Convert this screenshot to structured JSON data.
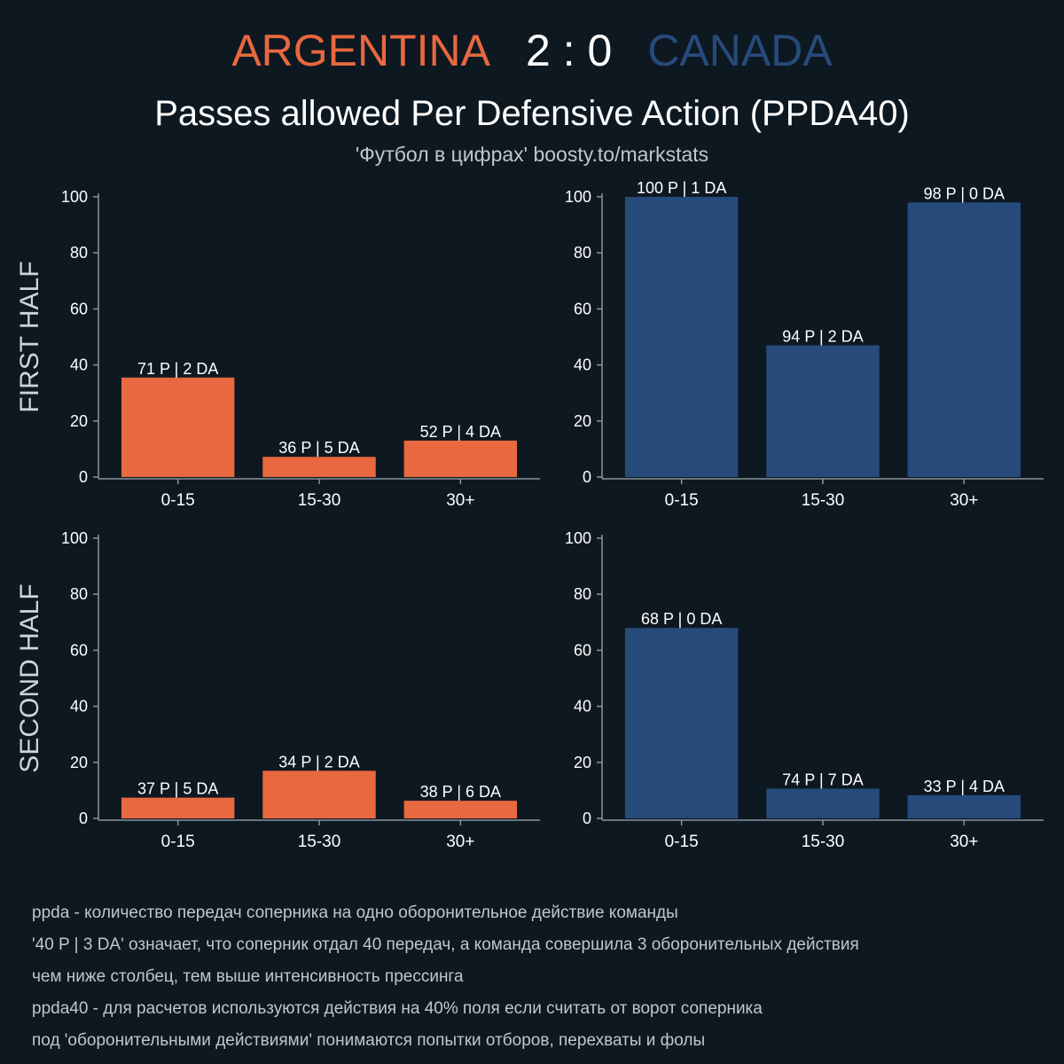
{
  "header": {
    "home_team": "ARGENTINA",
    "score": "2 : 0",
    "away_team": "CANADA",
    "title": "Passes allowed Per Defensive Action (PPDA40)",
    "subtitle": "'Футбол в цифрах' boosty.to/markstats"
  },
  "colors": {
    "background": "#0e1821",
    "home": "#e8683f",
    "away": "#264b7a",
    "axis": "#8a949e",
    "text": "#ffffff",
    "muted": "#c2c6cb"
  },
  "row_labels": [
    "FIRST HALF",
    "SECOND HALF"
  ],
  "chart_data": [
    {
      "type": "bar",
      "team": "ARGENTINA",
      "half": "FIRST HALF",
      "categories": [
        "0-15",
        "15-30",
        "30+"
      ],
      "values": [
        35.5,
        7.2,
        13.0
      ],
      "labels": [
        "71 P | 2 DA",
        "36 P | 5 DA",
        "52 P | 4 DA"
      ],
      "yticks": [
        0,
        20,
        40,
        60,
        80,
        100
      ],
      "ylim": [
        0,
        100
      ],
      "color": "#e8683f"
    },
    {
      "type": "bar",
      "team": "CANADA",
      "half": "FIRST HALF",
      "categories": [
        "0-15",
        "15-30",
        "30+"
      ],
      "values": [
        100,
        47,
        98
      ],
      "labels": [
        "100 P | 1 DA",
        "94 P | 2 DA",
        "98 P | 0 DA"
      ],
      "yticks": [
        0,
        20,
        40,
        60,
        80,
        100
      ],
      "ylim": [
        0,
        100
      ],
      "color": "#264b7a"
    },
    {
      "type": "bar",
      "team": "ARGENTINA",
      "half": "SECOND HALF",
      "categories": [
        "0-15",
        "15-30",
        "30+"
      ],
      "values": [
        7.4,
        17.0,
        6.3
      ],
      "labels": [
        "37 P | 5 DA",
        "34 P | 2 DA",
        "38 P | 6 DA"
      ],
      "yticks": [
        0,
        20,
        40,
        60,
        80,
        100
      ],
      "ylim": [
        0,
        100
      ],
      "color": "#e8683f"
    },
    {
      "type": "bar",
      "team": "CANADA",
      "half": "SECOND HALF",
      "categories": [
        "0-15",
        "15-30",
        "30+"
      ],
      "values": [
        68,
        10.6,
        8.3
      ],
      "labels": [
        "68 P | 0 DA",
        "74 P | 7 DA",
        "33 P | 4 DA"
      ],
      "yticks": [
        0,
        20,
        40,
        60,
        80,
        100
      ],
      "ylim": [
        0,
        100
      ],
      "color": "#264b7a"
    }
  ],
  "notes": [
    "ppda - количество передач соперника на одно оборонительное действие команды",
    "'40 P | 3 DA' означает, что соперник отдал 40 передач, а команда совершила 3 оборонительных действия",
    "чем ниже столбец, тем выше интенсивность прессинга",
    "ppda40 - для расчетов используются действия на 40% поля если считать от ворот соперника",
    "под 'оборонительными действиями' понимаются попытки отборов, перехваты и фолы"
  ]
}
